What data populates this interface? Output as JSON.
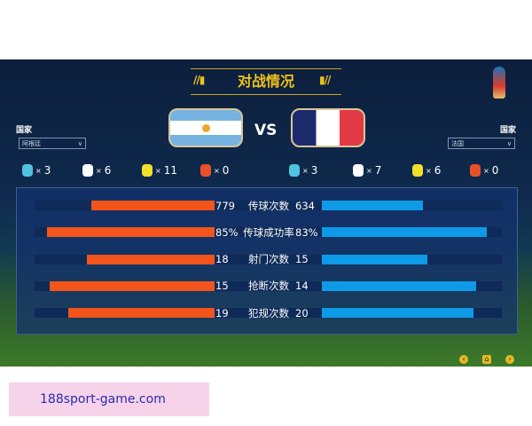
{
  "title": "对战情况",
  "left": {
    "country_label": "国家",
    "selected": "阿根廷",
    "stats": [
      "3",
      "6",
      "11",
      "0"
    ]
  },
  "right": {
    "country_label": "国家",
    "selected": "法国",
    "stats": [
      "3",
      "7",
      "6",
      "0"
    ]
  },
  "vs": "VS",
  "stat_icons": [
    "blue-card-icon",
    "ball-icon",
    "yellow-card-icon",
    "red-card-icon"
  ],
  "stat_colors": [
    "#4fc3e0",
    "#ffffff",
    "#f0e02a",
    "#e8502a"
  ],
  "multiply": "×",
  "rows": [
    {
      "label": "传球次数",
      "left": "779",
      "right": "634"
    },
    {
      "label": "传球成功率",
      "left": "85%",
      "right": "83%"
    },
    {
      "label": "射门次数",
      "left": "18",
      "right": "15"
    },
    {
      "label": "抢断次数",
      "left": "15",
      "right": "14"
    },
    {
      "label": "犯规次数",
      "left": "19",
      "right": "20"
    }
  ],
  "colors": {
    "left_bar": "#f2541b",
    "right_bar": "#0d9ae6",
    "accent": "#f2c21b"
  },
  "ad_text": "188sport-game.com"
}
